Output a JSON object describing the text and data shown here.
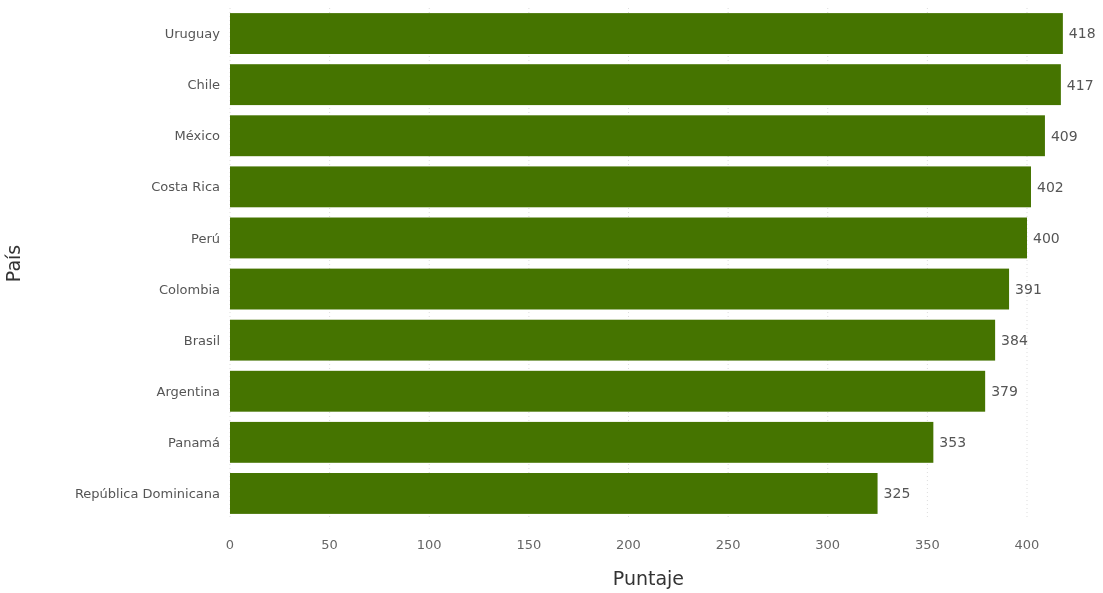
{
  "chart_data": {
    "type": "bar",
    "orientation": "horizontal",
    "xlabel": "Puntaje",
    "ylabel": "País",
    "categories": [
      "Uruguay",
      "Chile",
      "México",
      "Costa Rica",
      "Perú",
      "Colombia",
      "Brasil",
      "Argentina",
      "Panamá",
      "República Dominicana"
    ],
    "values": [
      418,
      417,
      409,
      402,
      400,
      391,
      384,
      379,
      353,
      325
    ],
    "color": "#457400",
    "xlim": [
      0,
      420
    ],
    "xticks": [
      0,
      50,
      100,
      150,
      200,
      250,
      300,
      350,
      400
    ],
    "grid": "x",
    "data_labels": true
  }
}
